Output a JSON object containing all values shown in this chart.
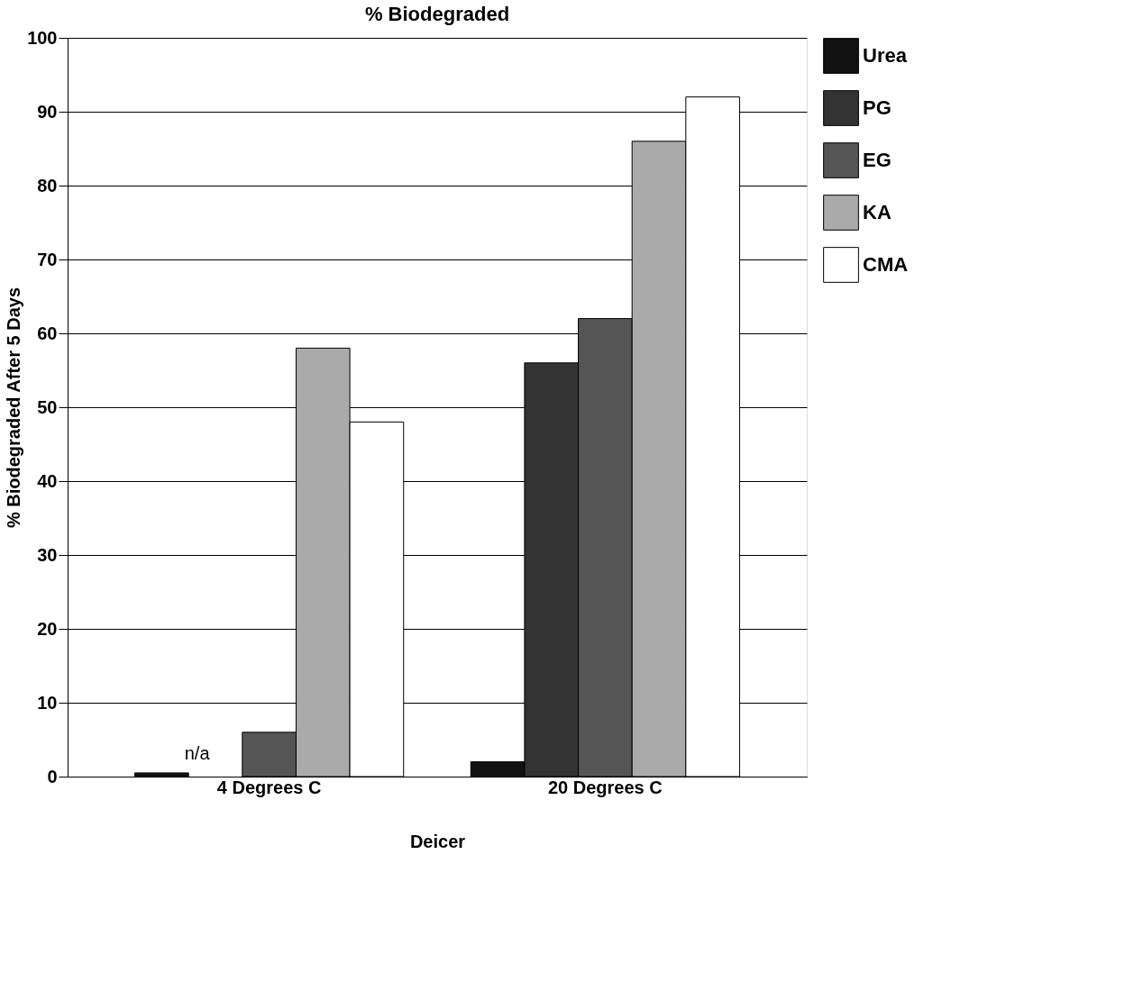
{
  "chart_data": {
    "type": "bar",
    "title": "% Biodegraded",
    "xlabel": "Deicer",
    "ylabel": "% Biodegraded After 5 Days",
    "categories": [
      "4 Degrees C",
      "20 Degrees C"
    ],
    "series": [
      {
        "name": "Urea",
        "color": "#111111",
        "values": [
          0.5,
          2
        ]
      },
      {
        "name": "PG",
        "color": "#333333",
        "values": [
          null,
          56
        ]
      },
      {
        "name": "EG",
        "color": "#555555",
        "values": [
          6,
          62
        ]
      },
      {
        "name": "KA",
        "color": "#aaaaaa",
        "values": [
          58,
          86
        ]
      },
      {
        "name": "CMA",
        "color": "#ffffff",
        "values": [
          48,
          92
        ]
      }
    ],
    "ylim": [
      0,
      100
    ],
    "yticks": [
      0,
      10,
      20,
      30,
      40,
      50,
      60,
      70,
      80,
      90,
      100
    ],
    "grid": "y",
    "legend": "right",
    "annotations": [
      "n/a"
    ]
  }
}
